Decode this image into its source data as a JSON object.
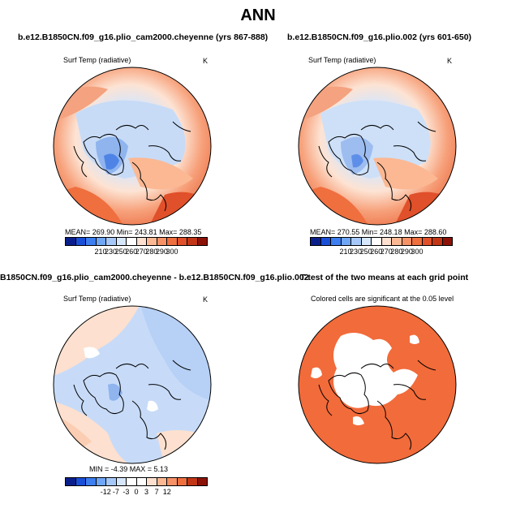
{
  "main_title": "ANN",
  "panels": [
    {
      "title": "b.e12.B1850CN.f09_g16.plio_cam2000.cheyenne (yrs 867-888)",
      "subtitle": "Surf Temp (radiative)",
      "units": "K",
      "stats": "MEAN=  269.90   Min=  243.81   Max=  288.35",
      "colorbar_ticks": [
        "210",
        "230",
        "250",
        "260",
        "270",
        "280",
        "290",
        "300"
      ]
    },
    {
      "title": "b.e12.B1850CN.f09_g16.plio.002 (yrs 601-650)",
      "subtitle": "Surf Temp (radiative)",
      "units": "K",
      "stats": "MEAN=  270.55   Min=  248.18   Max=  288.60",
      "colorbar_ticks": [
        "210",
        "230",
        "250",
        "260",
        "270",
        "280",
        "290",
        "300"
      ]
    },
    {
      "title": "B1850CN.f09_g16.plio_cam2000.cheyenne - b.e12.B1850CN.f09_g16.plio.002",
      "subtitle": "Surf Temp (radiative)",
      "units": "K",
      "stats": "MIN =  -4.39  MAX =   5.13",
      "colorbar_ticks": [
        "-12",
        "-7",
        "-3",
        "0",
        "3",
        "7",
        "12"
      ]
    },
    {
      "title": "T-test of the two means at each grid point",
      "subtitle": "Colored cells are significant at the 0.05 level"
    }
  ],
  "colors": {
    "temp_scale": [
      "#0a1f8c",
      "#1a4fd8",
      "#3d7ef0",
      "#6fa6f5",
      "#a6c8f8",
      "#d6e6fb",
      "#ffffff",
      "#fde0cf",
      "#fbb893",
      "#f79166",
      "#ef6f3f",
      "#e0502a",
      "#c23616",
      "#8c1208"
    ],
    "diff_scale": [
      "#0a1f8c",
      "#1a4fd8",
      "#3d7ef0",
      "#6fa6f5",
      "#a6c8f8",
      "#d6e6fb",
      "#ffffff",
      "#ffffff",
      "#fde0cf",
      "#fbb893",
      "#f79166",
      "#ef6f3f",
      "#c23616",
      "#8c1208"
    ],
    "significant": "#f26b3a"
  }
}
